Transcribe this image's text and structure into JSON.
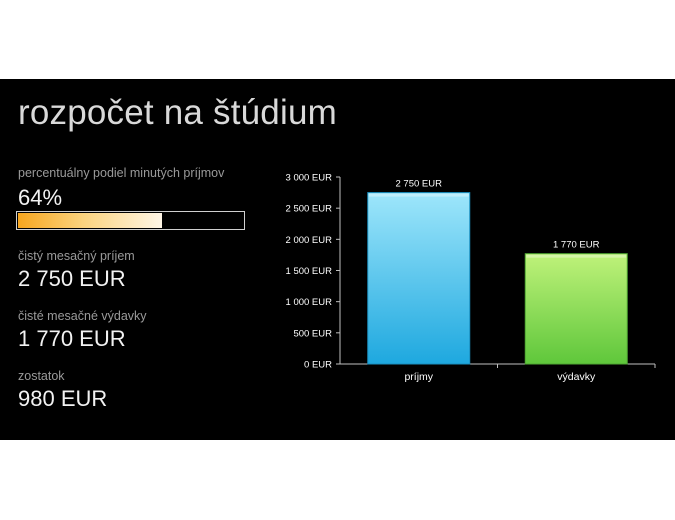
{
  "slide": {
    "title": "rozpočet na štúdium"
  },
  "metrics": {
    "percent_label": "percentuálny podiel minutých príjmov",
    "percent_value": "64%",
    "percent_fraction": 0.64,
    "income_label": "čistý mesačný príjem",
    "income_value": "2 750 EUR",
    "expenses_label": "čisté mesačné výdavky",
    "expenses_value": "1 770 EUR",
    "balance_label": "zostatok",
    "balance_value": "980 EUR"
  },
  "colors": {
    "progress_start": "#f6a61f",
    "bar_income": "#2fb4e8",
    "bar_expenses": "#7ed957"
  },
  "chart_data": {
    "type": "bar",
    "categories": [
      "príjmy",
      "výdavky"
    ],
    "values": [
      2750,
      1770
    ],
    "data_labels": [
      "2 750 EUR",
      "1 770 EUR"
    ],
    "ylim": [
      0,
      3000
    ],
    "yticks": [
      0,
      500,
      1000,
      1500,
      2000,
      2500,
      3000
    ],
    "ytick_labels": [
      "0 EUR",
      "500 EUR",
      "1 000 EUR",
      "1 500 EUR",
      "2 000 EUR",
      "2 500 EUR",
      "3 000 EUR"
    ],
    "grid": false,
    "legend": "none"
  }
}
